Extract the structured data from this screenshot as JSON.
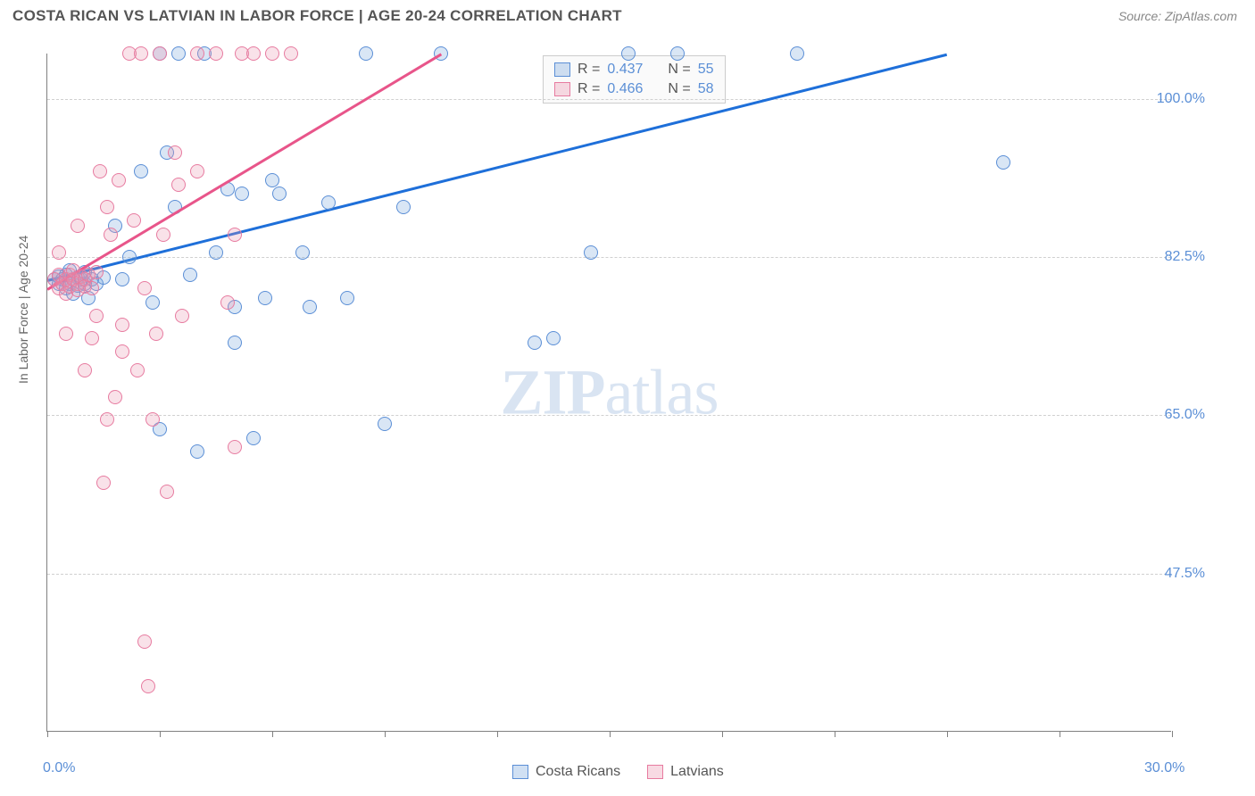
{
  "title": "COSTA RICAN VS LATVIAN IN LABOR FORCE | AGE 20-24 CORRELATION CHART",
  "source": "Source: ZipAtlas.com",
  "watermark": "ZIPatlas",
  "chart": {
    "type": "scatter",
    "ylabel": "In Labor Force | Age 20-24",
    "background_color": "#ffffff",
    "grid_color": "#d0d0d0",
    "axis_color": "#808080",
    "xlim": [
      0,
      30
    ],
    "ylim": [
      30,
      105
    ],
    "x_tick_positions": [
      0,
      3,
      6,
      9,
      12,
      15,
      18,
      21,
      24,
      27,
      30
    ],
    "x_tick_labels": {
      "0": "0.0%",
      "30": "30.0%"
    },
    "y_gridlines": [
      47.5,
      65.0,
      82.5,
      100.0
    ],
    "y_tick_labels": {
      "47.5": "47.5%",
      "65.0": "65.0%",
      "82.5": "82.5%",
      "100.0": "100.0%"
    },
    "label_fontsize": 14,
    "tick_label_color": "#5b8fd6",
    "marker_radius": 8,
    "series": [
      {
        "name": "Costa Ricans",
        "fill_color": "rgba(120,165,220,0.28)",
        "stroke_color": "#5b8fd6",
        "line_color": "#1e6fd9",
        "r_value": 0.437,
        "n_value": 55,
        "trend": {
          "x1": 0,
          "y1": 80,
          "x2": 24,
          "y2": 105
        },
        "points": [
          [
            0.2,
            80
          ],
          [
            0.3,
            79.5
          ],
          [
            0.3,
            80.3
          ],
          [
            0.4,
            80
          ],
          [
            0.5,
            79
          ],
          [
            0.5,
            80.5
          ],
          [
            0.6,
            79.5
          ],
          [
            0.6,
            81
          ],
          [
            0.7,
            78.5
          ],
          [
            0.8,
            80.2
          ],
          [
            0.8,
            79.3
          ],
          [
            0.9,
            80
          ],
          [
            1.0,
            79.5
          ],
          [
            1.0,
            80.8
          ],
          [
            1.1,
            78
          ],
          [
            1.2,
            80
          ],
          [
            1.3,
            79.5
          ],
          [
            1.5,
            80.2
          ],
          [
            1.8,
            86
          ],
          [
            2.0,
            80
          ],
          [
            2.2,
            82.5
          ],
          [
            2.5,
            92
          ],
          [
            2.8,
            77.5
          ],
          [
            3.0,
            105
          ],
          [
            3.0,
            63.5
          ],
          [
            3.2,
            94
          ],
          [
            3.4,
            88
          ],
          [
            3.5,
            105
          ],
          [
            3.8,
            80.5
          ],
          [
            4.0,
            61
          ],
          [
            4.2,
            105
          ],
          [
            4.5,
            83
          ],
          [
            4.8,
            90
          ],
          [
            5.0,
            77
          ],
          [
            5.0,
            73
          ],
          [
            5.2,
            89.5
          ],
          [
            5.5,
            62.5
          ],
          [
            5.8,
            78
          ],
          [
            6.0,
            91
          ],
          [
            6.2,
            89.5
          ],
          [
            6.8,
            83
          ],
          [
            7.0,
            77
          ],
          [
            7.5,
            88.5
          ],
          [
            8.0,
            78
          ],
          [
            8.5,
            105
          ],
          [
            9.0,
            64
          ],
          [
            9.5,
            88
          ],
          [
            10.5,
            105
          ],
          [
            13.0,
            73
          ],
          [
            13.5,
            73.5
          ],
          [
            14.5,
            83
          ],
          [
            15.5,
            105
          ],
          [
            16.8,
            105
          ],
          [
            20.0,
            105
          ],
          [
            25.5,
            93
          ]
        ]
      },
      {
        "name": "Latvians",
        "fill_color": "rgba(235,150,175,0.28)",
        "stroke_color": "#e77ba0",
        "line_color": "#e8558a",
        "r_value": 0.466,
        "n_value": 58,
        "trend": {
          "x1": 0,
          "y1": 79,
          "x2": 10.5,
          "y2": 105
        },
        "points": [
          [
            0.2,
            80
          ],
          [
            0.3,
            79
          ],
          [
            0.3,
            80.5
          ],
          [
            0.4,
            79.5
          ],
          [
            0.5,
            80
          ],
          [
            0.5,
            78.5
          ],
          [
            0.6,
            80.5
          ],
          [
            0.6,
            79.2
          ],
          [
            0.7,
            80
          ],
          [
            0.7,
            81
          ],
          [
            0.8,
            79.5
          ],
          [
            0.8,
            78.8
          ],
          [
            0.9,
            80.3
          ],
          [
            1.0,
            80
          ],
          [
            1.0,
            79.2
          ],
          [
            1.1,
            80.5
          ],
          [
            1.2,
            79
          ],
          [
            1.3,
            80.8
          ],
          [
            0.3,
            83
          ],
          [
            0.5,
            74
          ],
          [
            0.8,
            86
          ],
          [
            1.0,
            70
          ],
          [
            1.2,
            73.5
          ],
          [
            1.3,
            76
          ],
          [
            1.4,
            92
          ],
          [
            1.5,
            57.5
          ],
          [
            1.6,
            88
          ],
          [
            1.6,
            64.5
          ],
          [
            1.7,
            85
          ],
          [
            1.8,
            67
          ],
          [
            1.9,
            91
          ],
          [
            2.0,
            72
          ],
          [
            2.0,
            75
          ],
          [
            2.2,
            105
          ],
          [
            2.3,
            86.5
          ],
          [
            2.4,
            70
          ],
          [
            2.5,
            105
          ],
          [
            2.6,
            79
          ],
          [
            2.8,
            64.5
          ],
          [
            2.9,
            74
          ],
          [
            3.0,
            105
          ],
          [
            3.1,
            85
          ],
          [
            3.2,
            56.5
          ],
          [
            3.4,
            94
          ],
          [
            3.5,
            90.5
          ],
          [
            3.6,
            76
          ],
          [
            4.0,
            105
          ],
          [
            4.0,
            92
          ],
          [
            4.5,
            105
          ],
          [
            4.8,
            77.5
          ],
          [
            5.0,
            85
          ],
          [
            5.0,
            61.5
          ],
          [
            5.2,
            105
          ],
          [
            5.5,
            105
          ],
          [
            6.0,
            105
          ],
          [
            6.5,
            105
          ],
          [
            2.6,
            40
          ],
          [
            2.7,
            35
          ]
        ]
      }
    ]
  },
  "legend": {
    "r_label": "R =",
    "n_label": "N ="
  },
  "bottom_legend": [
    {
      "swatch": "blue",
      "label": "Costa Ricans"
    },
    {
      "swatch": "pink",
      "label": "Latvians"
    }
  ]
}
